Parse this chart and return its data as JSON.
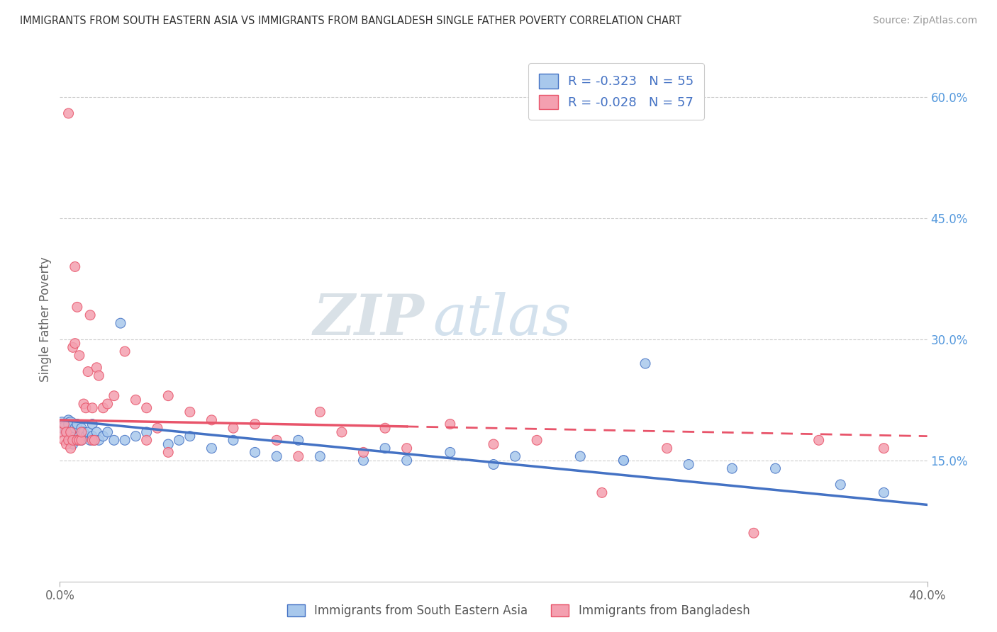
{
  "title": "IMMIGRANTS FROM SOUTH EASTERN ASIA VS IMMIGRANTS FROM BANGLADESH SINGLE FATHER POVERTY CORRELATION CHART",
  "source": "Source: ZipAtlas.com",
  "ylabel": "Single Father Poverty",
  "legend_label_blue": "Immigrants from South Eastern Asia",
  "legend_label_pink": "Immigrants from Bangladesh",
  "r_blue": -0.323,
  "n_blue": 55,
  "r_pink": -0.028,
  "n_pink": 57,
  "xlim": [
    0.0,
    0.4
  ],
  "ylim": [
    0.0,
    0.65
  ],
  "yticks": [
    0.15,
    0.3,
    0.45,
    0.6
  ],
  "ytick_labels": [
    "15.0%",
    "30.0%",
    "45.0%",
    "60.0%"
  ],
  "color_blue": "#A8C8EC",
  "color_pink": "#F4A0B0",
  "color_blue_line": "#4472C4",
  "color_pink_line": "#E8546A",
  "watermark_zip": "ZIP",
  "watermark_atlas": "atlas",
  "blue_scatter_x": [
    0.001,
    0.002,
    0.003,
    0.004,
    0.005,
    0.005,
    0.006,
    0.006,
    0.007,
    0.007,
    0.008,
    0.008,
    0.009,
    0.01,
    0.01,
    0.011,
    0.012,
    0.013,
    0.014,
    0.015,
    0.015,
    0.016,
    0.017,
    0.018,
    0.02,
    0.022,
    0.025,
    0.028,
    0.03,
    0.035,
    0.04,
    0.05,
    0.055,
    0.06,
    0.07,
    0.08,
    0.09,
    0.1,
    0.11,
    0.12,
    0.14,
    0.15,
    0.16,
    0.18,
    0.2,
    0.21,
    0.24,
    0.26,
    0.27,
    0.29,
    0.31,
    0.33,
    0.36,
    0.38,
    0.26
  ],
  "blue_scatter_y": [
    0.195,
    0.19,
    0.185,
    0.2,
    0.195,
    0.175,
    0.185,
    0.17,
    0.18,
    0.19,
    0.175,
    0.195,
    0.18,
    0.19,
    0.175,
    0.185,
    0.18,
    0.185,
    0.175,
    0.18,
    0.195,
    0.175,
    0.185,
    0.175,
    0.18,
    0.185,
    0.175,
    0.32,
    0.175,
    0.18,
    0.185,
    0.17,
    0.175,
    0.18,
    0.165,
    0.175,
    0.16,
    0.155,
    0.175,
    0.155,
    0.15,
    0.165,
    0.15,
    0.16,
    0.145,
    0.155,
    0.155,
    0.15,
    0.27,
    0.145,
    0.14,
    0.14,
    0.12,
    0.11,
    0.15
  ],
  "blue_scatter_size": [
    200,
    150,
    120,
    100,
    200,
    100,
    100,
    100,
    100,
    100,
    100,
    100,
    100,
    100,
    100,
    100,
    100,
    100,
    100,
    100,
    100,
    100,
    100,
    100,
    100,
    100,
    100,
    100,
    100,
    100,
    100,
    100,
    100,
    100,
    100,
    100,
    100,
    100,
    100,
    100,
    100,
    100,
    100,
    100,
    100,
    100,
    100,
    100,
    100,
    100,
    100,
    100,
    100,
    100,
    100
  ],
  "pink_scatter_x": [
    0.001,
    0.002,
    0.002,
    0.003,
    0.003,
    0.004,
    0.004,
    0.005,
    0.005,
    0.006,
    0.006,
    0.007,
    0.007,
    0.008,
    0.008,
    0.009,
    0.009,
    0.01,
    0.01,
    0.011,
    0.012,
    0.013,
    0.014,
    0.015,
    0.015,
    0.016,
    0.017,
    0.018,
    0.02,
    0.022,
    0.025,
    0.03,
    0.035,
    0.04,
    0.045,
    0.05,
    0.06,
    0.07,
    0.08,
    0.09,
    0.1,
    0.11,
    0.12,
    0.13,
    0.14,
    0.15,
    0.16,
    0.18,
    0.2,
    0.22,
    0.25,
    0.28,
    0.32,
    0.35,
    0.38,
    0.04,
    0.05
  ],
  "pink_scatter_y": [
    0.185,
    0.195,
    0.175,
    0.185,
    0.17,
    0.58,
    0.175,
    0.185,
    0.165,
    0.29,
    0.175,
    0.39,
    0.295,
    0.34,
    0.175,
    0.28,
    0.175,
    0.175,
    0.185,
    0.22,
    0.215,
    0.26,
    0.33,
    0.175,
    0.215,
    0.175,
    0.265,
    0.255,
    0.215,
    0.22,
    0.23,
    0.285,
    0.225,
    0.215,
    0.19,
    0.23,
    0.21,
    0.2,
    0.19,
    0.195,
    0.175,
    0.155,
    0.21,
    0.185,
    0.16,
    0.19,
    0.165,
    0.195,
    0.17,
    0.175,
    0.11,
    0.165,
    0.06,
    0.175,
    0.165,
    0.175,
    0.16
  ],
  "pink_scatter_size": [
    100,
    100,
    100,
    100,
    100,
    100,
    100,
    100,
    100,
    100,
    100,
    100,
    100,
    100,
    100,
    100,
    100,
    100,
    100,
    100,
    100,
    100,
    100,
    100,
    100,
    100,
    100,
    100,
    100,
    100,
    100,
    100,
    100,
    100,
    100,
    100,
    100,
    100,
    100,
    100,
    100,
    100,
    100,
    100,
    100,
    100,
    100,
    100,
    100,
    100,
    100,
    100,
    100,
    100,
    100,
    100,
    100
  ],
  "blue_trendline_x0": 0.0,
  "blue_trendline_x1": 0.4,
  "blue_trendline_y0": 0.2,
  "blue_trendline_y1": 0.095,
  "pink_trendline_x0": 0.0,
  "pink_trendline_x1": 0.4,
  "pink_trendline_y0": 0.2,
  "pink_trendline_y1": 0.18
}
